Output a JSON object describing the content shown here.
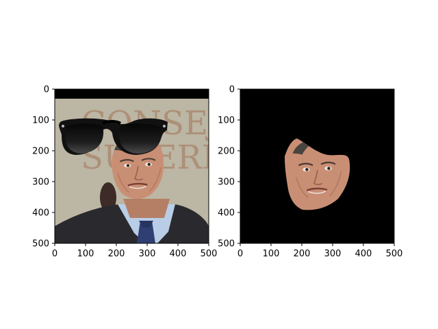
{
  "chart_data": [
    {
      "type": "image",
      "title": "",
      "xlabel": "",
      "ylabel": "",
      "xlim": [
        0,
        500
      ],
      "ylim": [
        500,
        0
      ],
      "xticks": [
        0,
        100,
        200,
        300,
        400,
        500
      ],
      "yticks": [
        0,
        100,
        200,
        300,
        400,
        500
      ],
      "grid": false,
      "content": "photo of man in suit with sunglasses overlay",
      "background_text": "CONSEJ SUPERI",
      "overlay": "sunglasses-icon",
      "colors": {
        "wall": "#bcb6a4",
        "wall_text": "#a8846a",
        "suit": "#2a2a2e",
        "shirt": "#b9cde6",
        "tie": "#2f3f73",
        "skin": "#c98f74",
        "hair": "#4a4440",
        "lens": "#151515"
      }
    },
    {
      "type": "image",
      "title": "",
      "xlabel": "",
      "ylabel": "",
      "xlim": [
        0,
        500
      ],
      "ylim": [
        500,
        0
      ],
      "xticks": [
        0,
        100,
        200,
        300,
        400,
        500
      ],
      "yticks": [
        0,
        100,
        200,
        300,
        400,
        500
      ],
      "grid": false,
      "content": "segmented face on black background",
      "colors": {
        "background": "#000000",
        "skin": "#c98f74"
      }
    }
  ]
}
